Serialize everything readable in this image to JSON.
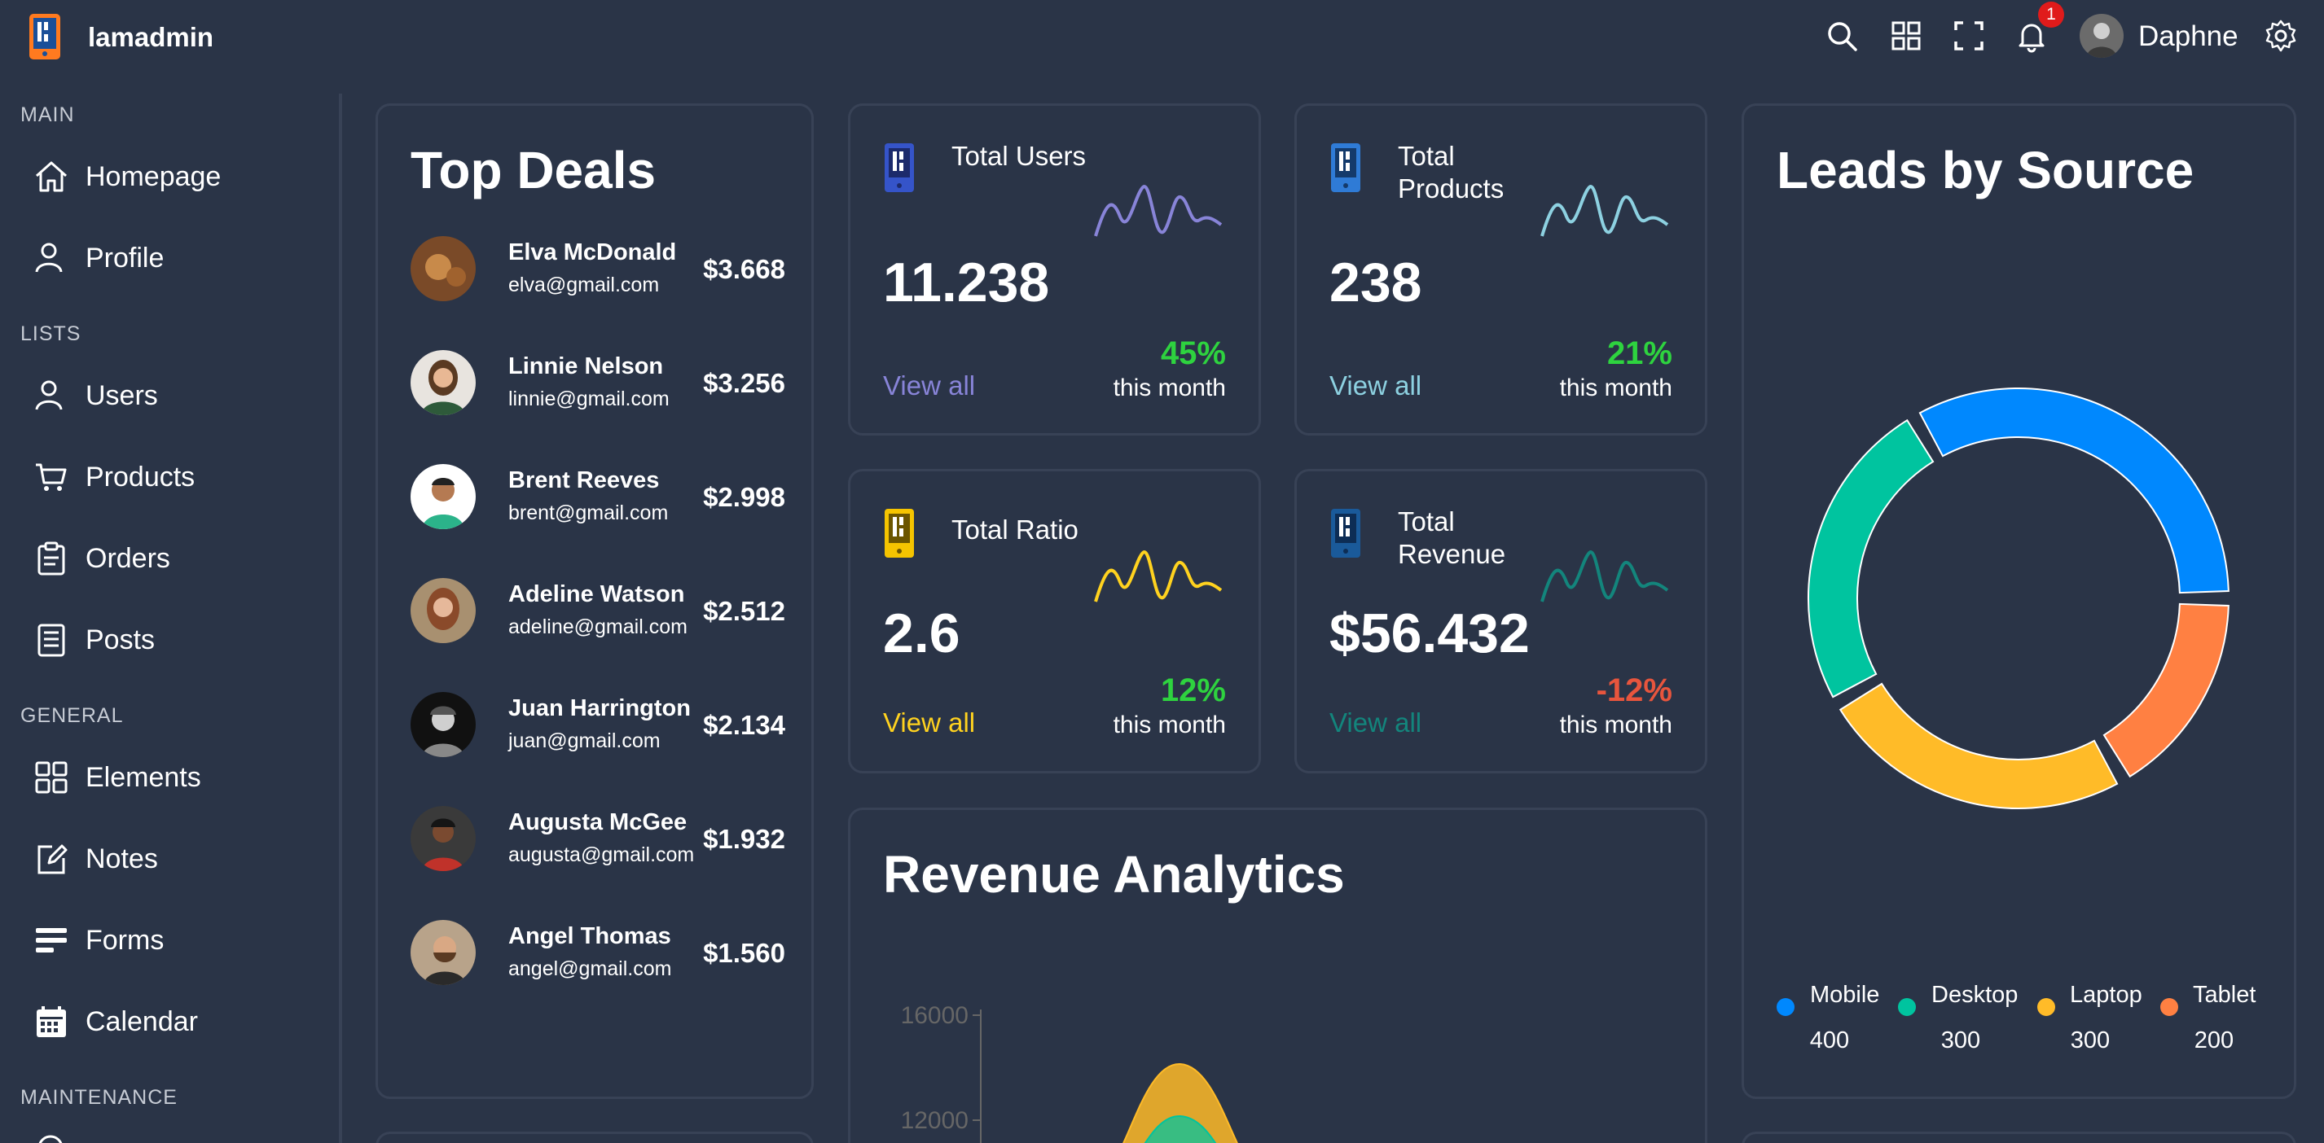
{
  "app": {
    "name": "lamadmin"
  },
  "topbar": {
    "notification_count": "1",
    "username": "Daphne"
  },
  "sidebar": {
    "sections": [
      {
        "title": "MAIN",
        "items": [
          {
            "label": "Homepage",
            "icon": "home-icon"
          },
          {
            "label": "Profile",
            "icon": "user-icon"
          }
        ]
      },
      {
        "title": "LISTS",
        "items": [
          {
            "label": "Users",
            "icon": "users-icon"
          },
          {
            "label": "Products",
            "icon": "cart-icon"
          },
          {
            "label": "Orders",
            "icon": "clipboard-icon"
          },
          {
            "label": "Posts",
            "icon": "document-icon"
          }
        ]
      },
      {
        "title": "GENERAL",
        "items": [
          {
            "label": "Elements",
            "icon": "grid-icon"
          },
          {
            "label": "Notes",
            "icon": "edit-icon"
          },
          {
            "label": "Forms",
            "icon": "form-icon"
          },
          {
            "label": "Calendar",
            "icon": "calendar-icon"
          }
        ]
      },
      {
        "title": "MAINTENANCE",
        "items": []
      }
    ]
  },
  "top_deals": {
    "title": "Top Deals",
    "items": [
      {
        "name": "Elva McDonald",
        "email": "elva@gmail.com",
        "amount": "$3.668"
      },
      {
        "name": "Linnie Nelson",
        "email": "linnie@gmail.com",
        "amount": "$3.256"
      },
      {
        "name": "Brent Reeves",
        "email": "brent@gmail.com",
        "amount": "$2.998"
      },
      {
        "name": "Adeline Watson",
        "email": "adeline@gmail.com",
        "amount": "$2.512"
      },
      {
        "name": "Juan Harrington",
        "email": "juan@gmail.com",
        "amount": "$2.134"
      },
      {
        "name": "Augusta McGee",
        "email": "augusta@gmail.com",
        "amount": "$1.932"
      },
      {
        "name": "Angel Thomas",
        "email": "angel@gmail.com",
        "amount": "$1.560"
      }
    ]
  },
  "stats": [
    {
      "title": "Total Users",
      "value": "11.238",
      "view_all": "View all",
      "percent": "45%",
      "period": "this month",
      "color": "#8884d8",
      "percent_color": "#2ed33f"
    },
    {
      "title": "Total Products",
      "value": "238",
      "view_all": "View all",
      "percent": "21%",
      "period": "this month",
      "color": "#8dd1e1",
      "percent_color": "#2ed33f"
    },
    {
      "title": "Total Ratio",
      "value": "2.6",
      "view_all": "View all",
      "percent": "12%",
      "period": "this month",
      "color": "#ffd21f",
      "percent_color": "#2ed33f"
    },
    {
      "title": "Total Revenue",
      "value": "$56.432",
      "view_all": "View all",
      "percent": "-12%",
      "period": "this month",
      "color": "#13857c",
      "percent_color": "#e8553d"
    }
  ],
  "leads": {
    "title": "Leads by Source",
    "chart_data": {
      "type": "pie",
      "categories": [
        "Mobile",
        "Desktop",
        "Laptop",
        "Tablet"
      ],
      "values": [
        400,
        300,
        300,
        200
      ],
      "colors": [
        "#0088fe",
        "#00c49f",
        "#ffbb28",
        "#ff8042"
      ],
      "legend": "bottom"
    },
    "value_labels": [
      "400",
      "300",
      "300",
      "200"
    ]
  },
  "revenue": {
    "title": "Revenue Analytics",
    "chart_data": {
      "type": "area",
      "ytick_labels": [
        "16000",
        "12000"
      ],
      "series_colors": [
        "#ffbb28",
        "#00c49f"
      ]
    }
  }
}
